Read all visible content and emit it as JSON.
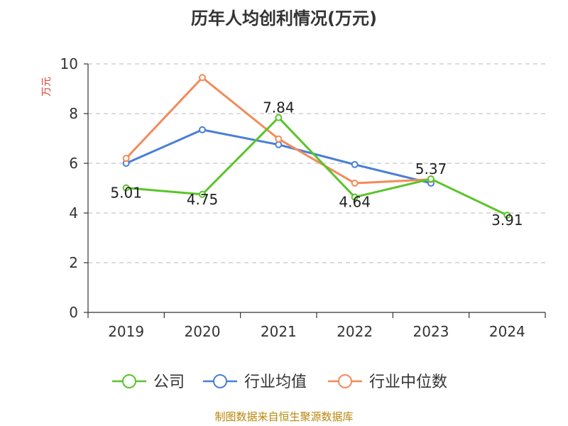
{
  "source": "制图数据来自恒生聚源数据库",
  "chart_data": {
    "type": "line",
    "title": "历年人均创利情况(万元)",
    "ylabel": "万元",
    "xlabel": "",
    "categories": [
      "2019",
      "2020",
      "2021",
      "2022",
      "2023",
      "2024"
    ],
    "ylim": [
      0,
      10
    ],
    "yticks": [
      "0",
      "2",
      "4",
      "6",
      "8",
      "10"
    ],
    "grid": true,
    "legend_position": "bottom",
    "series": [
      {
        "name": "公司",
        "color": "#5ac42a",
        "values": [
          5.01,
          4.75,
          7.84,
          4.64,
          5.37,
          3.91
        ],
        "labels": [
          "5.01",
          "4.75",
          "7.84",
          "4.64",
          "5.37",
          "3.91"
        ]
      },
      {
        "name": "行业均值",
        "color": "#4a7fd8",
        "values": [
          6.0,
          7.35,
          6.75,
          5.95,
          5.2,
          null
        ]
      },
      {
        "name": "行业中位数",
        "color": "#f28b5a",
        "values": [
          6.2,
          9.45,
          6.98,
          5.2,
          5.35,
          null
        ]
      }
    ]
  }
}
